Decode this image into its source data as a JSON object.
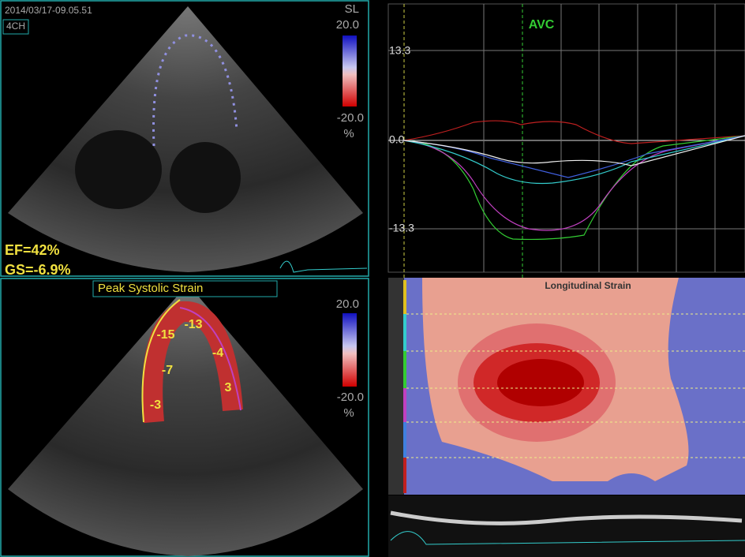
{
  "top_left": {
    "timestamp": "2014/03/17-09.05.51",
    "view": "4CH",
    "scale_label": "SL",
    "scale_max": "20.0",
    "scale_min": "-20.0",
    "scale_unit": "%",
    "ef": "EF=42%",
    "gs": "GS=-6.9%"
  },
  "bottom_left": {
    "title": "Peak Systolic Strain",
    "scale_max": "20.0",
    "scale_min": "-20.0",
    "scale_unit": "%",
    "segments": [
      "-15",
      "-13",
      "-4",
      "-7",
      "-3",
      "3"
    ]
  },
  "curve_panel": {
    "event": "AVC",
    "axis_labels": [
      "13.3",
      "0.0",
      "-13.3"
    ]
  },
  "map_panel": {
    "title": "Longitudinal Strain"
  }
}
